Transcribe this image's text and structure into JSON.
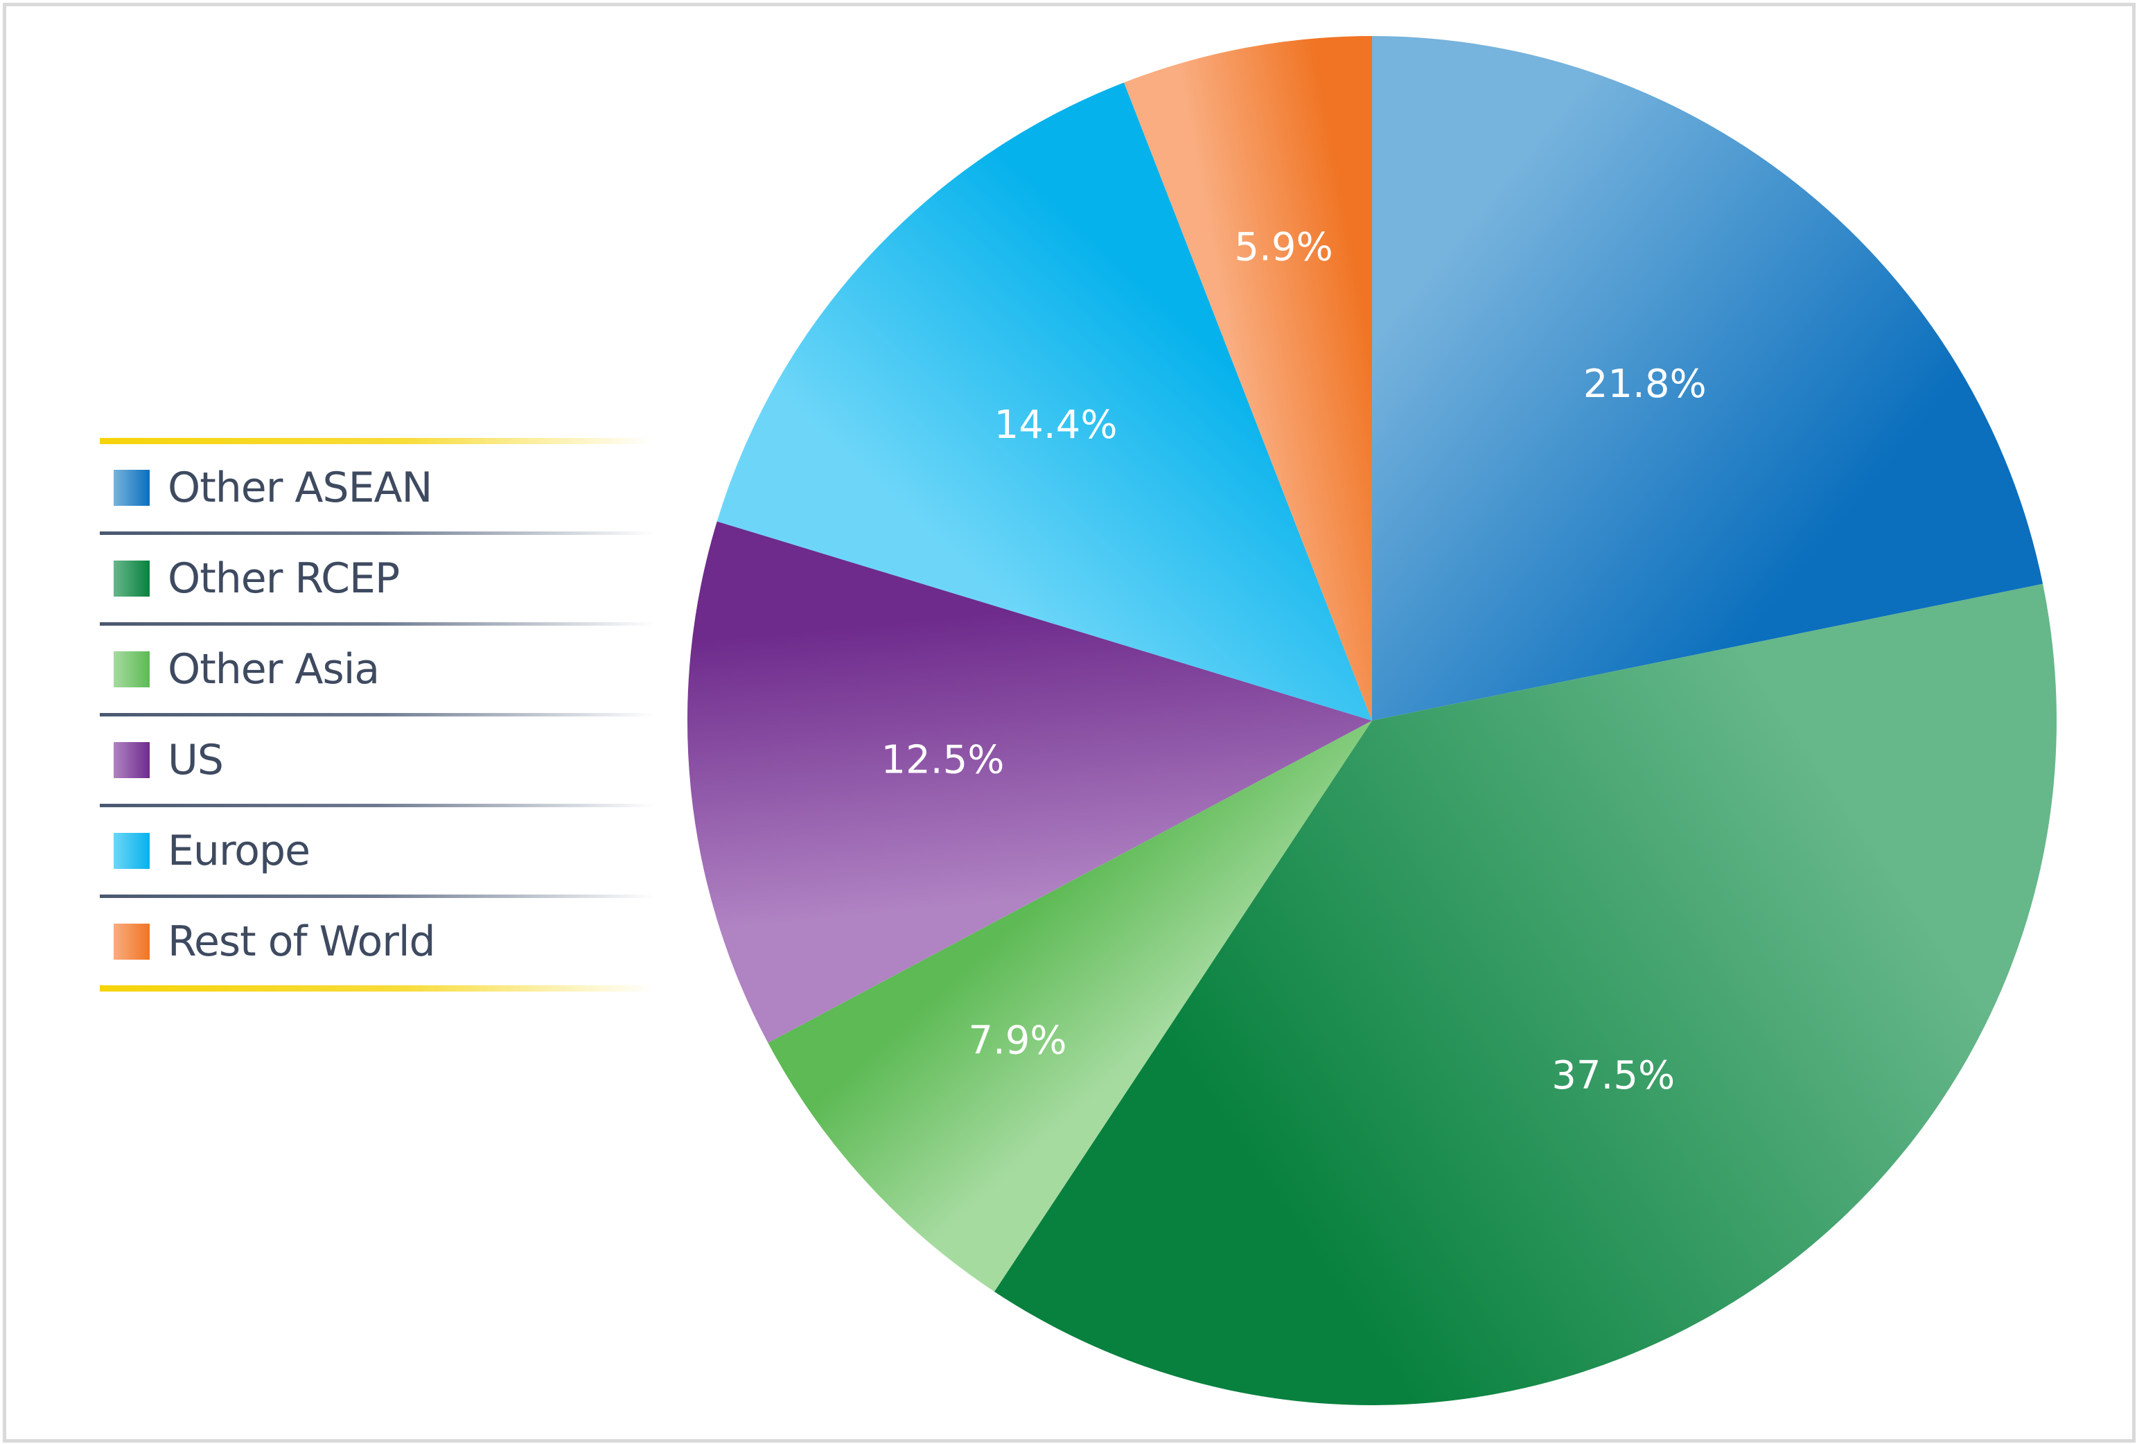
{
  "chart_data": {
    "type": "pie",
    "title": "",
    "start_angle_deg": 0,
    "direction": "clockwise",
    "legend_position": "left",
    "slices": [
      {
        "name": "Other ASEAN",
        "value": 21.8,
        "label": "21.8%",
        "color_light": "#76b3dd",
        "color_dark": "#0b6fbd"
      },
      {
        "name": "Other RCEP",
        "value": 37.5,
        "label": "37.5%",
        "color_light": "#66b78a",
        "color_dark": "#08813e"
      },
      {
        "name": "Other Asia",
        "value": 7.9,
        "label": "7.9%",
        "color_light": "#a6dba0",
        "color_dark": "#5dba54"
      },
      {
        "name": "US",
        "value": 12.5,
        "label": "12.5%",
        "color_light": "#b083c3",
        "color_dark": "#6e2b8c"
      },
      {
        "name": "Europe",
        "value": 14.4,
        "label": "14.4%",
        "color_light": "#6dd6f8",
        "color_dark": "#06b2ec"
      },
      {
        "name": "Rest of World",
        "value": 5.9,
        "label": "5.9%",
        "color_light": "#f9ad80",
        "color_dark": "#f07423"
      }
    ]
  },
  "legend": {
    "items": [
      {
        "label": "Other ASEAN"
      },
      {
        "label": "Other RCEP"
      },
      {
        "label": "Other Asia"
      },
      {
        "label": "US"
      },
      {
        "label": "Europe"
      },
      {
        "label": "Rest of World"
      }
    ]
  }
}
